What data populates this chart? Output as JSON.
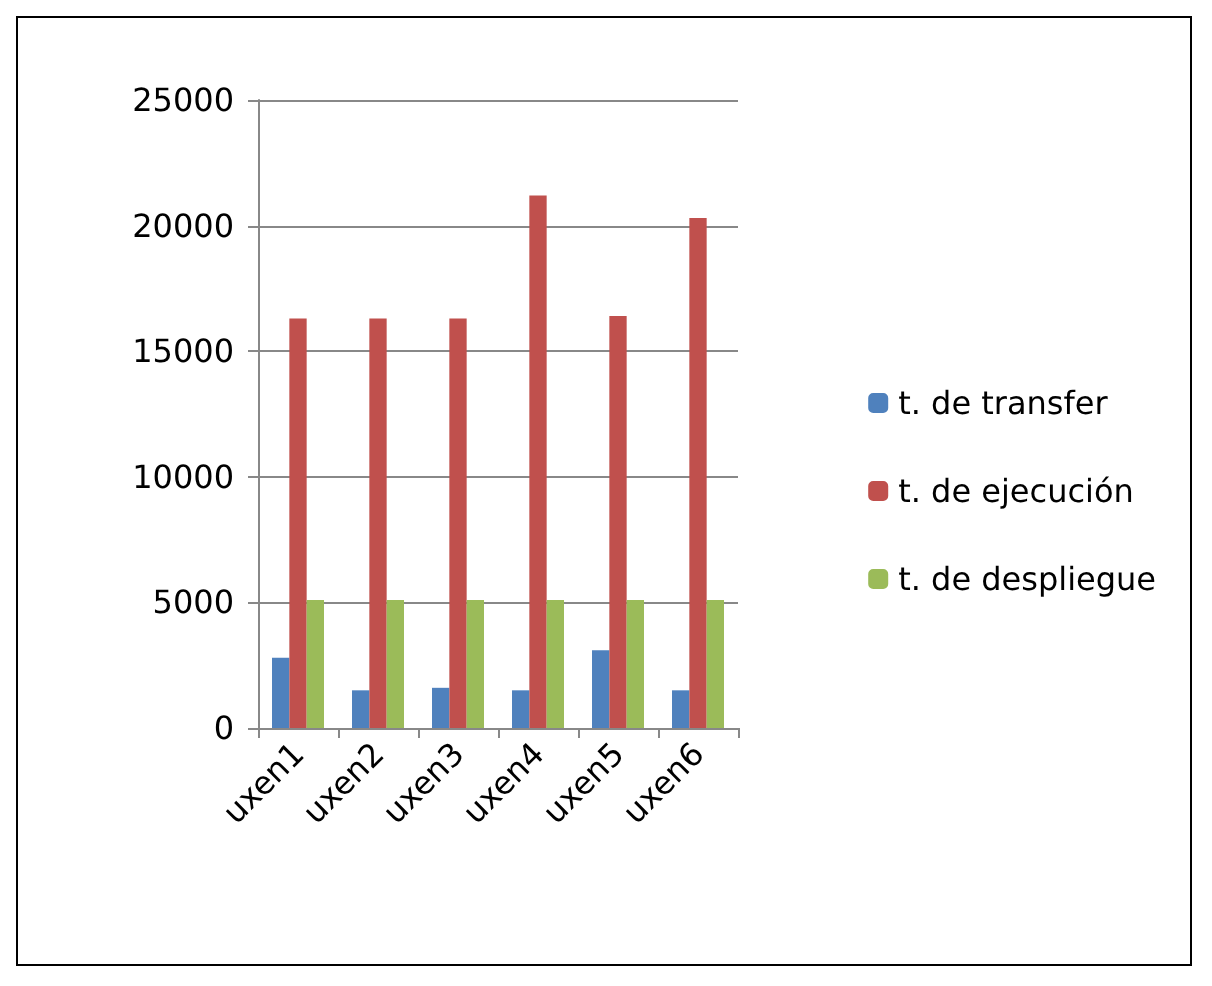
{
  "chart_data": {
    "type": "bar",
    "categories": [
      "uxen1",
      "uxen2",
      "uxen3",
      "uxen4",
      "uxen5",
      "uxen6"
    ],
    "series": [
      {
        "name": "t. de transfer",
        "color": "#4f81bd",
        "values": [
          2800,
          1500,
          1600,
          1500,
          3100,
          1500
        ]
      },
      {
        "name": "t. de ejecución",
        "color": "#c0504d",
        "values": [
          16300,
          16300,
          16300,
          21200,
          16400,
          20300
        ]
      },
      {
        "name": "t. de despliegue",
        "color": "#9bbb59",
        "values": [
          5100,
          5100,
          5100,
          5100,
          5100,
          5100
        ]
      }
    ],
    "ylim": [
      0,
      25000
    ],
    "yticks": [
      0,
      5000,
      10000,
      15000,
      20000,
      25000
    ],
    "grid": "y",
    "legend": "right"
  }
}
